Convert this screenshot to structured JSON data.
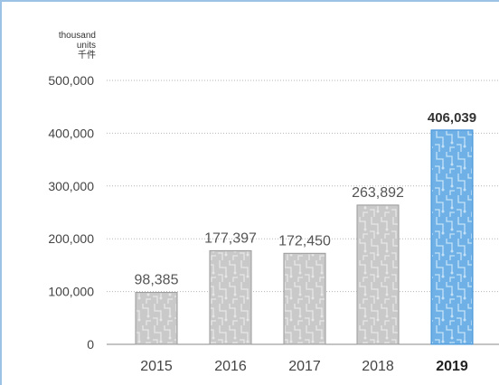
{
  "chart_data": {
    "type": "bar",
    "unit_label_en": "thousand\nunits",
    "unit_label_zh": "千件",
    "categories": [
      "2015",
      "2016",
      "2017",
      "2018",
      "2019"
    ],
    "values": [
      98385,
      177397,
      172450,
      263892,
      406039
    ],
    "value_labels": [
      "98,385",
      "177,397",
      "172,450",
      "263,892",
      "406,039"
    ],
    "y_ticks": [
      "0",
      "100,000",
      "200,000",
      "300,000",
      "400,000",
      "500,000"
    ],
    "ylim": [
      0,
      500000
    ],
    "highlight_index": 4,
    "grid": true,
    "colors": {
      "bar": "#c9c9c9",
      "bar_border": "#9a9a9a",
      "highlight": "#6fb1e6",
      "highlight_border": "#3d8fd6",
      "grid": "#b5b5b5",
      "frame": "#9cc3e6"
    }
  }
}
